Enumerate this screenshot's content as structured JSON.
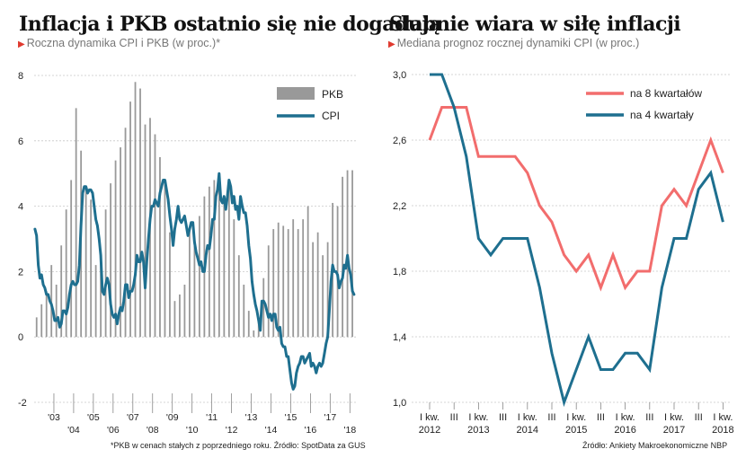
{
  "left": {
    "title": "Inflacja i PKB ostatnio się nie dogadują",
    "subtitle": "Roczna dynamika CPI i PKB (w proc.)*",
    "footnote": "*PKB w cenach stałych z poprzedniego roku. Źródło: SpotData za GUS"
  },
  "right": {
    "title": "Słabnie wiara w siłę inflacji",
    "subtitle": "Mediana prognoz rocznej dynamiki CPI (w proc.)",
    "footnote": "Źródło: Ankiety Makroekonomiczne NBP"
  },
  "colors": {
    "pkb": "#999999",
    "cpi": "#1e6f8f",
    "k8": "#f26d6d",
    "k4": "#1e6f8f",
    "grid": "#c8c8c8",
    "accent": "#e03a2f"
  },
  "chart_data": [
    {
      "type": "bar+line",
      "ylim": [
        -2,
        8
      ],
      "yticks": [
        -2,
        0,
        2,
        4,
        6,
        8
      ],
      "x_tick_labels": [
        "'03",
        "'04",
        "'05",
        "'06",
        "'07",
        "'08",
        "'09",
        "'10",
        "'11",
        "'12",
        "'13",
        "'14",
        "'15",
        "'16",
        "'17",
        "'18"
      ],
      "legend": [
        "PKB",
        "CPI"
      ],
      "pkb": {
        "name": "PKB",
        "quarters": [
          "2002Q1",
          "2002Q2",
          "2002Q3",
          "2002Q4",
          "2003Q1",
          "2003Q2",
          "2003Q3",
          "2003Q4",
          "2004Q1",
          "2004Q2",
          "2004Q3",
          "2004Q4",
          "2005Q1",
          "2005Q2",
          "2005Q3",
          "2005Q4",
          "2006Q1",
          "2006Q2",
          "2006Q3",
          "2006Q4",
          "2007Q1",
          "2007Q2",
          "2007Q3",
          "2007Q4",
          "2008Q1",
          "2008Q2",
          "2008Q3",
          "2008Q4",
          "2009Q1",
          "2009Q2",
          "2009Q3",
          "2009Q4",
          "2010Q1",
          "2010Q2",
          "2010Q3",
          "2010Q4",
          "2011Q1",
          "2011Q2",
          "2011Q3",
          "2011Q4",
          "2012Q1",
          "2012Q2",
          "2012Q3",
          "2012Q4",
          "2013Q1",
          "2013Q2",
          "2013Q3",
          "2013Q4",
          "2014Q1",
          "2014Q2",
          "2014Q3",
          "2014Q4",
          "2015Q1",
          "2015Q2",
          "2015Q3",
          "2015Q4",
          "2016Q1",
          "2016Q2",
          "2016Q3",
          "2016Q4",
          "2017Q1",
          "2017Q2",
          "2017Q3",
          "2017Q4",
          "2018Q1"
        ],
        "values": [
          0.6,
          1.0,
          1.4,
          2.2,
          1.6,
          2.8,
          3.9,
          4.8,
          7.0,
          5.7,
          4.6,
          4.2,
          2.2,
          2.6,
          3.9,
          4.7,
          5.4,
          5.8,
          6.4,
          7.2,
          7.8,
          7.6,
          6.5,
          6.7,
          6.2,
          5.5,
          4.8,
          3.2,
          1.1,
          1.3,
          1.6,
          3.3,
          3.0,
          3.7,
          4.3,
          4.6,
          4.8,
          4.6,
          4.3,
          4.8,
          3.6,
          2.5,
          1.6,
          0.8,
          0.2,
          0.5,
          1.8,
          2.8,
          3.3,
          3.5,
          3.4,
          3.3,
          3.6,
          3.3,
          3.6,
          4.0,
          2.9,
          3.2,
          2.5,
          2.9,
          4.1,
          4.0,
          4.9,
          5.1,
          5.1
        ]
      },
      "cpi": {
        "name": "CPI",
        "points": [
          [
            "2002-01",
            3.3
          ],
          [
            "2002-02",
            3.1
          ],
          [
            "2002-03",
            2.2
          ],
          [
            "2002-04",
            1.8
          ],
          [
            "2002-05",
            1.9
          ],
          [
            "2002-06",
            1.6
          ],
          [
            "2002-07",
            1.5
          ],
          [
            "2002-08",
            1.3
          ],
          [
            "2002-09",
            1.3
          ],
          [
            "2002-10",
            1.1
          ],
          [
            "2002-11",
            1.0
          ],
          [
            "2002-12",
            0.8
          ],
          [
            "2003-01",
            0.5
          ],
          [
            "2003-02",
            0.5
          ],
          [
            "2003-03",
            0.6
          ],
          [
            "2003-04",
            0.3
          ],
          [
            "2003-05",
            0.4
          ],
          [
            "2003-06",
            0.8
          ],
          [
            "2003-07",
            0.8
          ],
          [
            "2003-08",
            0.7
          ],
          [
            "2003-09",
            0.9
          ],
          [
            "2003-10",
            1.3
          ],
          [
            "2003-11",
            1.6
          ],
          [
            "2003-12",
            1.7
          ],
          [
            "2004-01",
            1.6
          ],
          [
            "2004-02",
            1.6
          ],
          [
            "2004-03",
            1.7
          ],
          [
            "2004-04",
            2.2
          ],
          [
            "2004-05",
            3.4
          ],
          [
            "2004-06",
            4.4
          ],
          [
            "2004-07",
            4.6
          ],
          [
            "2004-08",
            4.6
          ],
          [
            "2004-09",
            4.4
          ],
          [
            "2004-10",
            4.5
          ],
          [
            "2004-11",
            4.5
          ],
          [
            "2004-12",
            4.4
          ],
          [
            "2005-01",
            4.0
          ],
          [
            "2005-02",
            3.6
          ],
          [
            "2005-03",
            3.4
          ],
          [
            "2005-04",
            3.0
          ],
          [
            "2005-05",
            2.5
          ],
          [
            "2005-06",
            1.4
          ],
          [
            "2005-07",
            1.3
          ],
          [
            "2005-08",
            1.6
          ],
          [
            "2005-09",
            1.8
          ],
          [
            "2005-10",
            1.6
          ],
          [
            "2005-11",
            1.0
          ],
          [
            "2005-12",
            0.7
          ],
          [
            "2006-01",
            0.6
          ],
          [
            "2006-02",
            0.7
          ],
          [
            "2006-03",
            0.4
          ],
          [
            "2006-04",
            0.7
          ],
          [
            "2006-05",
            0.9
          ],
          [
            "2006-06",
            0.8
          ],
          [
            "2006-07",
            1.1
          ],
          [
            "2006-08",
            1.6
          ],
          [
            "2006-09",
            1.6
          ],
          [
            "2006-10",
            1.2
          ],
          [
            "2006-11",
            1.4
          ],
          [
            "2006-12",
            1.4
          ],
          [
            "2007-01",
            1.6
          ],
          [
            "2007-02",
            1.9
          ],
          [
            "2007-03",
            2.5
          ],
          [
            "2007-04",
            2.3
          ],
          [
            "2007-05",
            2.3
          ],
          [
            "2007-06",
            2.6
          ],
          [
            "2007-07",
            2.3
          ],
          [
            "2007-08",
            1.5
          ],
          [
            "2007-09",
            2.3
          ],
          [
            "2007-10",
            3.0
          ],
          [
            "2007-11",
            3.6
          ],
          [
            "2007-12",
            4.0
          ],
          [
            "2008-01",
            4.0
          ],
          [
            "2008-02",
            4.2
          ],
          [
            "2008-03",
            4.1
          ],
          [
            "2008-04",
            4.0
          ],
          [
            "2008-05",
            4.4
          ],
          [
            "2008-06",
            4.6
          ],
          [
            "2008-07",
            4.8
          ],
          [
            "2008-08",
            4.8
          ],
          [
            "2008-09",
            4.5
          ],
          [
            "2008-10",
            4.2
          ],
          [
            "2008-11",
            3.7
          ],
          [
            "2008-12",
            3.3
          ],
          [
            "2009-01",
            2.8
          ],
          [
            "2009-02",
            3.3
          ],
          [
            "2009-03",
            3.6
          ],
          [
            "2009-04",
            4.0
          ],
          [
            "2009-05",
            3.6
          ],
          [
            "2009-06",
            3.5
          ],
          [
            "2009-07",
            3.6
          ],
          [
            "2009-08",
            3.7
          ],
          [
            "2009-09",
            3.4
          ],
          [
            "2009-10",
            3.1
          ],
          [
            "2009-11",
            3.3
          ],
          [
            "2009-12",
            3.5
          ],
          [
            "2010-01",
            3.5
          ],
          [
            "2010-02",
            2.9
          ],
          [
            "2010-03",
            2.6
          ],
          [
            "2010-04",
            2.4
          ],
          [
            "2010-05",
            2.2
          ],
          [
            "2010-06",
            2.3
          ],
          [
            "2010-07",
            2.0
          ],
          [
            "2010-08",
            2.0
          ],
          [
            "2010-09",
            2.5
          ],
          [
            "2010-10",
            2.8
          ],
          [
            "2010-11",
            2.7
          ],
          [
            "2010-12",
            3.1
          ],
          [
            "2011-01",
            3.6
          ],
          [
            "2011-02",
            3.6
          ],
          [
            "2011-03",
            4.3
          ],
          [
            "2011-04",
            4.5
          ],
          [
            "2011-05",
            5.0
          ],
          [
            "2011-06",
            4.2
          ],
          [
            "2011-07",
            4.1
          ],
          [
            "2011-08",
            4.3
          ],
          [
            "2011-09",
            3.9
          ],
          [
            "2011-10",
            4.3
          ],
          [
            "2011-11",
            4.8
          ],
          [
            "2011-12",
            4.6
          ],
          [
            "2012-01",
            4.1
          ],
          [
            "2012-02",
            4.3
          ],
          [
            "2012-03",
            3.9
          ],
          [
            "2012-04",
            4.0
          ],
          [
            "2012-05",
            3.6
          ],
          [
            "2012-06",
            4.3
          ],
          [
            "2012-07",
            4.0
          ],
          [
            "2012-08",
            3.8
          ],
          [
            "2012-09",
            3.8
          ],
          [
            "2012-10",
            3.4
          ],
          [
            "2012-11",
            2.8
          ],
          [
            "2012-12",
            2.4
          ],
          [
            "2013-01",
            1.7
          ],
          [
            "2013-02",
            1.3
          ],
          [
            "2013-03",
            1.0
          ],
          [
            "2013-04",
            0.8
          ],
          [
            "2013-05",
            0.5
          ],
          [
            "2013-06",
            0.2
          ],
          [
            "2013-07",
            1.1
          ],
          [
            "2013-08",
            1.1
          ],
          [
            "2013-09",
            1.0
          ],
          [
            "2013-10",
            0.8
          ],
          [
            "2013-11",
            0.6
          ],
          [
            "2013-12",
            0.7
          ],
          [
            "2014-01",
            0.5
          ],
          [
            "2014-02",
            0.7
          ],
          [
            "2014-03",
            0.7
          ],
          [
            "2014-04",
            0.3
          ],
          [
            "2014-05",
            0.2
          ],
          [
            "2014-06",
            0.3
          ],
          [
            "2014-07",
            -0.2
          ],
          [
            "2014-08",
            -0.3
          ],
          [
            "2014-09",
            -0.3
          ],
          [
            "2014-10",
            -0.6
          ],
          [
            "2014-11",
            -0.6
          ],
          [
            "2014-12",
            -1.0
          ],
          [
            "2015-01",
            -1.4
          ],
          [
            "2015-02",
            -1.6
          ],
          [
            "2015-03",
            -1.5
          ],
          [
            "2015-04",
            -1.1
          ],
          [
            "2015-05",
            -0.9
          ],
          [
            "2015-06",
            -0.8
          ],
          [
            "2015-07",
            -0.6
          ],
          [
            "2015-08",
            -0.6
          ],
          [
            "2015-09",
            -0.8
          ],
          [
            "2015-10",
            -0.7
          ],
          [
            "2015-11",
            -0.6
          ],
          [
            "2015-12",
            -0.5
          ],
          [
            "2016-01",
            -0.9
          ],
          [
            "2016-02",
            -0.8
          ],
          [
            "2016-03",
            -0.9
          ],
          [
            "2016-04",
            -1.1
          ],
          [
            "2016-05",
            -0.9
          ],
          [
            "2016-06",
            -0.8
          ],
          [
            "2016-07",
            -0.9
          ],
          [
            "2016-08",
            -0.8
          ],
          [
            "2016-09",
            -0.5
          ],
          [
            "2016-10",
            -0.2
          ],
          [
            "2016-11",
            0.0
          ],
          [
            "2016-12",
            0.8
          ],
          [
            "2017-01",
            1.7
          ],
          [
            "2017-02",
            2.2
          ],
          [
            "2017-03",
            2.0
          ],
          [
            "2017-04",
            2.0
          ],
          [
            "2017-05",
            1.9
          ],
          [
            "2017-06",
            1.5
          ],
          [
            "2017-07",
            1.7
          ],
          [
            "2017-08",
            1.8
          ],
          [
            "2017-09",
            2.2
          ],
          [
            "2017-10",
            2.1
          ],
          [
            "2017-11",
            2.5
          ],
          [
            "2017-12",
            2.1
          ],
          [
            "2018-01",
            1.9
          ],
          [
            "2018-02",
            1.4
          ],
          [
            "2018-03",
            1.3
          ]
        ]
      }
    },
    {
      "type": "line",
      "ylim": [
        1.0,
        3.0
      ],
      "yticks": [
        1.0,
        1.4,
        1.8,
        2.2,
        2.6,
        3.0
      ],
      "ytick_labels": [
        "1,0",
        "1,4",
        "1,8",
        "2,2",
        "2,6",
        "3,0"
      ],
      "x_tick_labels": [
        {
          "line1": "I kw.",
          "line2": "2012"
        },
        {
          "line1": "III",
          "line2": ""
        },
        {
          "line1": "I kw.",
          "line2": "2013"
        },
        {
          "line1": "III",
          "line2": ""
        },
        {
          "line1": "I kw.",
          "line2": "2014"
        },
        {
          "line1": "III",
          "line2": ""
        },
        {
          "line1": "I kw.",
          "line2": "2015"
        },
        {
          "line1": "III",
          "line2": ""
        },
        {
          "line1": "I kw.",
          "line2": "2016"
        },
        {
          "line1": "III",
          "line2": ""
        },
        {
          "line1": "I kw.",
          "line2": "2017"
        },
        {
          "line1": "III",
          "line2": ""
        },
        {
          "line1": "I kw.",
          "line2": "2018"
        }
      ],
      "series": [
        {
          "name": "na 8 kwartałów",
          "values": [
            2.6,
            2.8,
            2.8,
            2.8,
            2.5,
            2.5,
            2.5,
            2.5,
            2.4,
            2.2,
            2.1,
            1.9,
            1.8,
            1.9,
            1.7,
            1.9,
            1.7,
            1.8,
            1.8,
            2.2,
            2.3,
            2.2,
            2.4,
            2.6,
            2.4
          ]
        },
        {
          "name": "na 4 kwartały",
          "values": [
            3.0,
            3.0,
            2.8,
            2.5,
            2.0,
            1.9,
            2.0,
            2.0,
            2.0,
            1.7,
            1.3,
            1.0,
            1.2,
            1.4,
            1.2,
            1.2,
            1.3,
            1.3,
            1.2,
            1.7,
            2.0,
            2.0,
            2.3,
            2.4,
            2.1
          ]
        }
      ]
    }
  ]
}
